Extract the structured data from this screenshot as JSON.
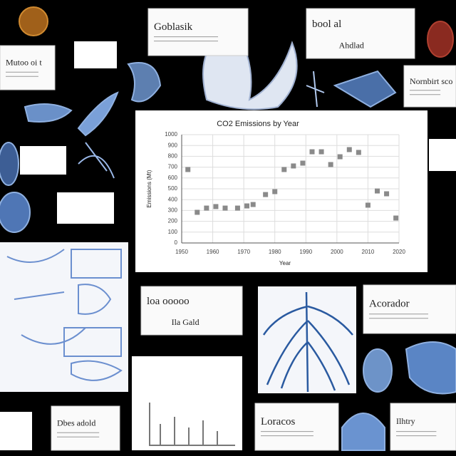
{
  "chart_data": {
    "type": "scatter",
    "title": "CO2 Emissions by Year",
    "x_label": "Year",
    "y_label": "Emissions (Mt)",
    "x": [
      1952,
      1955,
      1958,
      1961,
      1964,
      1968,
      1971,
      1973,
      1977,
      1980,
      1983,
      1986,
      1989,
      1992,
      1995,
      1998,
      2001,
      2004,
      2007,
      2010,
      2013,
      2016,
      2019
    ],
    "values": [
      678,
      283,
      322,
      336,
      322,
      322,
      342,
      355,
      447,
      474,
      678,
      711,
      737,
      842,
      842,
      724,
      796,
      862,
      836,
      349,
      480,
      454,
      230
    ],
    "color": "#8a8a8a",
    "xlim": [
      1950,
      2020
    ],
    "xticks": [
      1950,
      1960,
      1970,
      1980,
      1990,
      2000,
      2010,
      2020
    ],
    "ylim": [
      0,
      1000
    ],
    "yticks": [
      0,
      100,
      200,
      300,
      400,
      500,
      600,
      700,
      800,
      900,
      1000
    ],
    "grid": true
  },
  "panels": [
    {
      "title": "Goblasik"
    },
    {
      "title": "bool al",
      "subtitle": "Ahdlad"
    },
    {
      "title": "Mutoo oi t"
    },
    {
      "title": "Nornbirt sco"
    },
    {
      "title": "loa ooooo",
      "subtitle": "Ila Gald"
    },
    {
      "title": "Acorador"
    },
    {
      "title": "Dbes adold"
    },
    {
      "title": "Loracos"
    },
    {
      "title": "Ilhtry"
    }
  ]
}
